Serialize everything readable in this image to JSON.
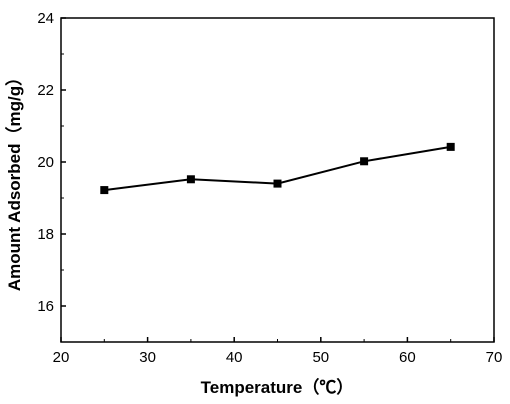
{
  "chart_data": {
    "type": "line",
    "title": "",
    "xlabel": "Temperature（℃）",
    "ylabel": "Amount Adsorbed（mg/g）",
    "xlim": [
      20,
      70
    ],
    "ylim": [
      15,
      24
    ],
    "x_ticks": [
      20,
      30,
      40,
      50,
      60,
      70
    ],
    "y_ticks": [
      16,
      18,
      20,
      22,
      24
    ],
    "grid": false,
    "legend": "none",
    "marker": "square",
    "line_color": "#000000",
    "series": [
      {
        "x": [
          25,
          35,
          45,
          55,
          65
        ],
        "y": [
          19.22,
          19.52,
          19.4,
          20.02,
          20.42
        ]
      }
    ]
  }
}
